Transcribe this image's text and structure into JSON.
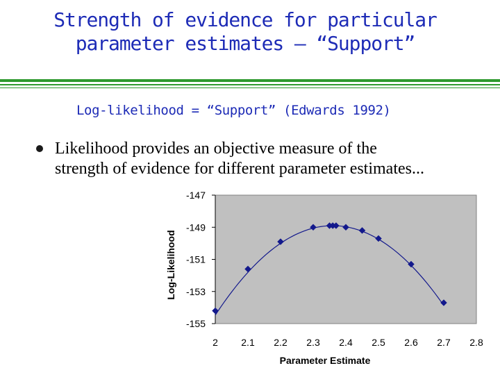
{
  "slide": {
    "title_line1": "Strength of evidence for particular",
    "title_line2": "parameter estimates – “Support”",
    "subtitle": "Log-likelihood = “Support” (Edwards 1992)",
    "bullet_line1": "Likelihood provides an objective measure of the",
    "bullet_line2": "strength of evidence for different parameter estimates..."
  },
  "colors": {
    "title_text": "#1d2bb6",
    "rule": "#2f9a2f",
    "plot_bg": "#c0c0c0",
    "marker": "#13198c",
    "curve": "#13198c"
  },
  "chart_data": {
    "type": "scatter",
    "title": "",
    "xlabel": "Parameter Estimate",
    "ylabel": "Log-Likelihood",
    "xlim": [
      2,
      2.8
    ],
    "ylim": [
      -155,
      -147
    ],
    "xticks": [
      "2",
      "2.1",
      "2.2",
      "2.3",
      "2.4",
      "2.5",
      "2.6",
      "2.7",
      "2.8"
    ],
    "yticks": [
      "-147",
      "-149",
      "-151",
      "-153",
      "-155"
    ],
    "grid": false,
    "legend": "none",
    "series": [
      {
        "points": [
          {
            "x": 2.0,
            "y": -154.2
          },
          {
            "x": 2.1,
            "y": -151.6
          },
          {
            "x": 2.2,
            "y": -149.9
          },
          {
            "x": 2.3,
            "y": -149.0
          },
          {
            "x": 2.35,
            "y": -148.9
          },
          {
            "x": 2.36,
            "y": -148.9
          },
          {
            "x": 2.37,
            "y": -148.9
          },
          {
            "x": 2.4,
            "y": -149.0
          },
          {
            "x": 2.45,
            "y": -149.2
          },
          {
            "x": 2.5,
            "y": -149.7
          },
          {
            "x": 2.6,
            "y": -151.3
          },
          {
            "x": 2.7,
            "y": -153.7
          }
        ],
        "fit_curve": {
          "type": "quadratic",
          "vertex_x": 2.36,
          "vertex_y": -148.9,
          "curvature": -43
        }
      }
    ]
  }
}
